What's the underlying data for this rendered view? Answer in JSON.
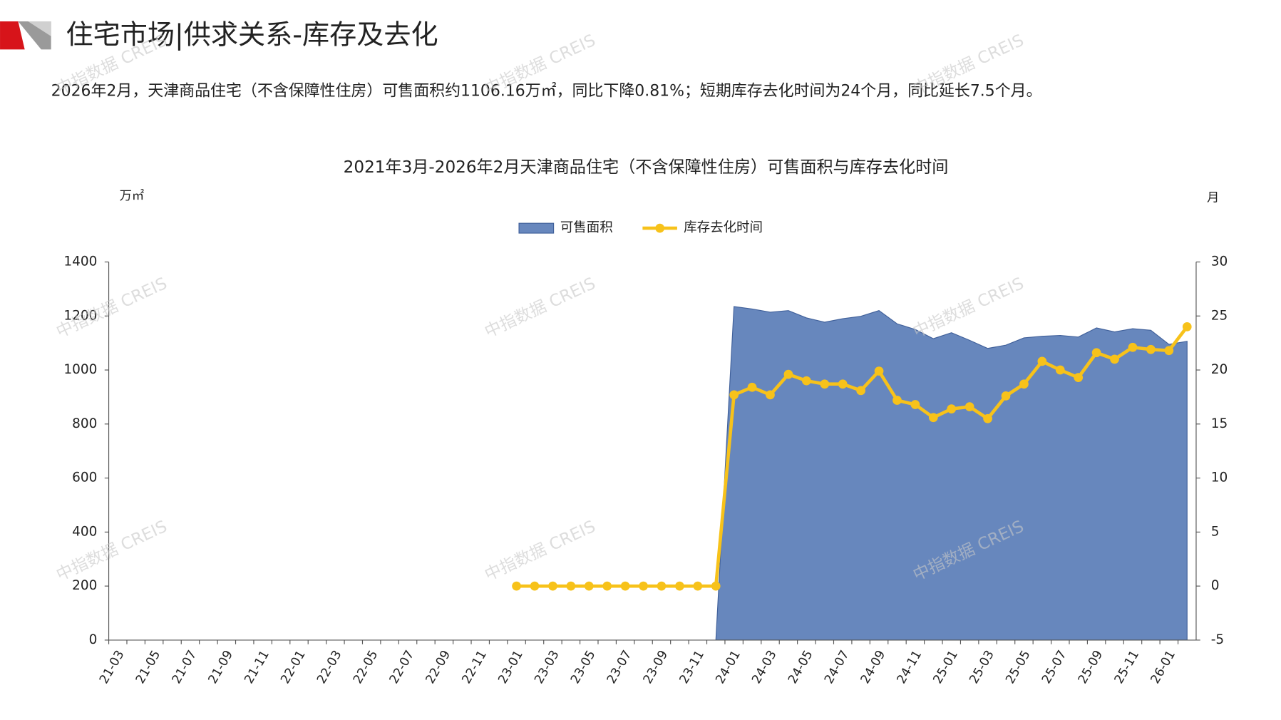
{
  "chart_data": {
    "type": "area-line",
    "heading": "住宅市场|供求关系-库存及去化",
    "summary": "2026年2月，天津商品住宅（不含保障性住房）可售面积约1106.16万㎡，同比下降0.81%；短期库存去化时间为24个月，同比延长7.5个月。",
    "title": "2021年3月-2026年2月天津商品住宅（不含保障性住房）可售面积与库存去化时间",
    "y_label": "万㎡",
    "y2_label": "月",
    "watermark": "中指数据 CREIS",
    "categories": [
      "21-03",
      null,
      "21-05",
      null,
      "21-07",
      null,
      "21-09",
      null,
      "21-11",
      null,
      "22-01",
      null,
      "22-03",
      null,
      "22-05",
      null,
      "22-07",
      null,
      "22-09",
      null,
      "22-11",
      null,
      "23-01",
      null,
      "23-03",
      null,
      "23-05",
      null,
      "23-07",
      null,
      "23-09",
      null,
      "23-11",
      null,
      "24-01",
      null,
      "24-03",
      null,
      "24-05",
      null,
      "24-07",
      null,
      "24-09",
      null,
      "24-11",
      null,
      "25-01",
      null,
      "25-03",
      null,
      "25-05",
      null,
      "25-07",
      null,
      "25-09",
      null,
      "25-11",
      null,
      "26-01",
      null
    ],
    "series": [
      {
        "name": "可售面积",
        "type": "area",
        "color": "#6787bd",
        "values": [
          null,
          null,
          null,
          null,
          null,
          null,
          null,
          null,
          null,
          null,
          null,
          null,
          null,
          null,
          null,
          null,
          null,
          null,
          null,
          null,
          null,
          null,
          null,
          null,
          null,
          null,
          null,
          null,
          null,
          null,
          null,
          null,
          null,
          0,
          1235,
          1226,
          1214,
          1220,
          1193,
          1177,
          1190,
          1199,
          1220,
          1171,
          1150,
          1116,
          1138,
          1110,
          1080,
          1092,
          1119,
          1125,
          1128,
          1122,
          1156,
          1141,
          1153,
          1147,
          1095,
          1106.16
        ]
      },
      {
        "name": "库存去化时间",
        "type": "line",
        "axis": "y2",
        "color": "#f7c21a",
        "values": [
          null,
          null,
          null,
          null,
          null,
          null,
          null,
          null,
          null,
          null,
          null,
          null,
          null,
          null,
          null,
          null,
          null,
          null,
          null,
          null,
          null,
          null,
          0,
          0,
          0,
          0,
          0,
          0,
          0,
          0,
          0,
          0,
          0,
          0,
          17.7,
          18.4,
          17.7,
          19.6,
          19.0,
          18.7,
          18.7,
          18.1,
          19.9,
          17.2,
          16.8,
          15.6,
          16.4,
          16.6,
          15.5,
          17.6,
          18.7,
          20.8,
          20.0,
          19.3,
          21.6,
          21.0,
          22.1,
          21.9,
          21.8,
          24
        ]
      }
    ],
    "ylim": [
      0,
      1400
    ],
    "yticks": [
      0,
      200,
      400,
      600,
      800,
      1000,
      1200,
      1400
    ],
    "y2lim": [
      -5,
      30
    ],
    "y2ticks": [
      -5,
      0,
      5,
      10,
      15,
      20,
      25,
      30
    ],
    "grid": false,
    "legend": "top"
  }
}
